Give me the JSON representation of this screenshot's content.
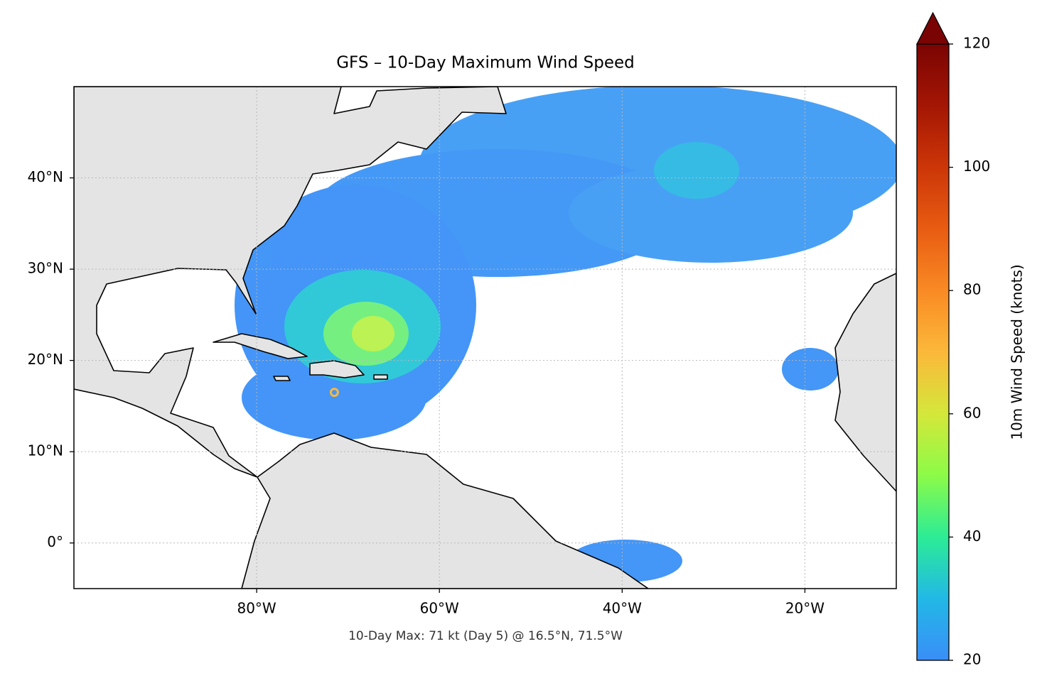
{
  "chart_data": {
    "type": "map",
    "title": "GFS – 10-Day Maximum Wind Speed",
    "annotation": "10-Day Max: 71 kt (Day 5) @ 16.5°N, 71.5°W",
    "xlim": [
      -100,
      -10
    ],
    "ylim": [
      -5,
      50
    ],
    "xticks": [
      {
        "value": -80,
        "label": "80°W"
      },
      {
        "value": -60,
        "label": "60°W"
      },
      {
        "value": -40,
        "label": "40°W"
      },
      {
        "value": -20,
        "label": "20°W"
      }
    ],
    "yticks": [
      {
        "value": 0,
        "label": "0°"
      },
      {
        "value": 10,
        "label": "10°N"
      },
      {
        "value": 20,
        "label": "20°N"
      },
      {
        "value": 30,
        "label": "30°N"
      },
      {
        "value": 40,
        "label": "40°N"
      }
    ],
    "grid": true,
    "colorbar": {
      "label": "10m Wind Speed (knots)",
      "colormap": "turbo",
      "lim": [
        20,
        120
      ],
      "ticks": [
        20,
        40,
        60,
        80,
        100,
        120
      ],
      "extend": "max"
    },
    "marker": {
      "lon": -71.5,
      "lat": 16.5,
      "value": 71
    }
  }
}
